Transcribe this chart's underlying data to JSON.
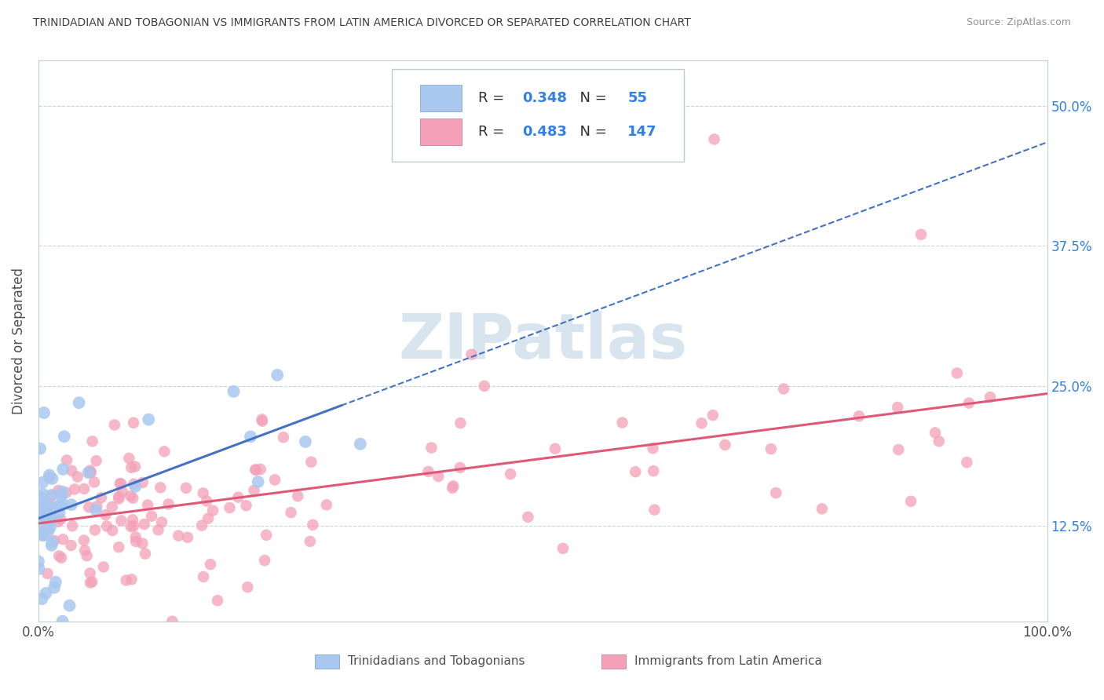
{
  "title": "TRINIDADIAN AND TOBAGONIAN VS IMMIGRANTS FROM LATIN AMERICA DIVORCED OR SEPARATED CORRELATION CHART",
  "source": "Source: ZipAtlas.com",
  "ylabel": "Divorced or Separated",
  "xlim": [
    0.0,
    1.0
  ],
  "ylim": [
    0.04,
    0.54
  ],
  "yticks": [
    0.125,
    0.25,
    0.375,
    0.5
  ],
  "ytick_labels": [
    "12.5%",
    "25.0%",
    "37.5%",
    "50.0%"
  ],
  "xticks": [
    0.0,
    1.0
  ],
  "xtick_labels": [
    "0.0%",
    "100.0%"
  ],
  "blue_R": 0.348,
  "blue_N": 55,
  "pink_R": 0.483,
  "pink_N": 147,
  "blue_color": "#a8c8f0",
  "pink_color": "#f4a0b8",
  "blue_line_color": "#4472c4",
  "pink_line_color": "#e05878",
  "legend_label_blue": "Trinidadians and Tobagonians",
  "legend_label_pink": "Immigrants from Latin America",
  "watermark": "ZIPatlas",
  "watermark_color": "#d8e4ee",
  "background_color": "#ffffff",
  "grid_color": "#c8d4dc",
  "title_color": "#404040",
  "source_color": "#909090",
  "text_color": "#303030",
  "value_color": "#3080e8"
}
